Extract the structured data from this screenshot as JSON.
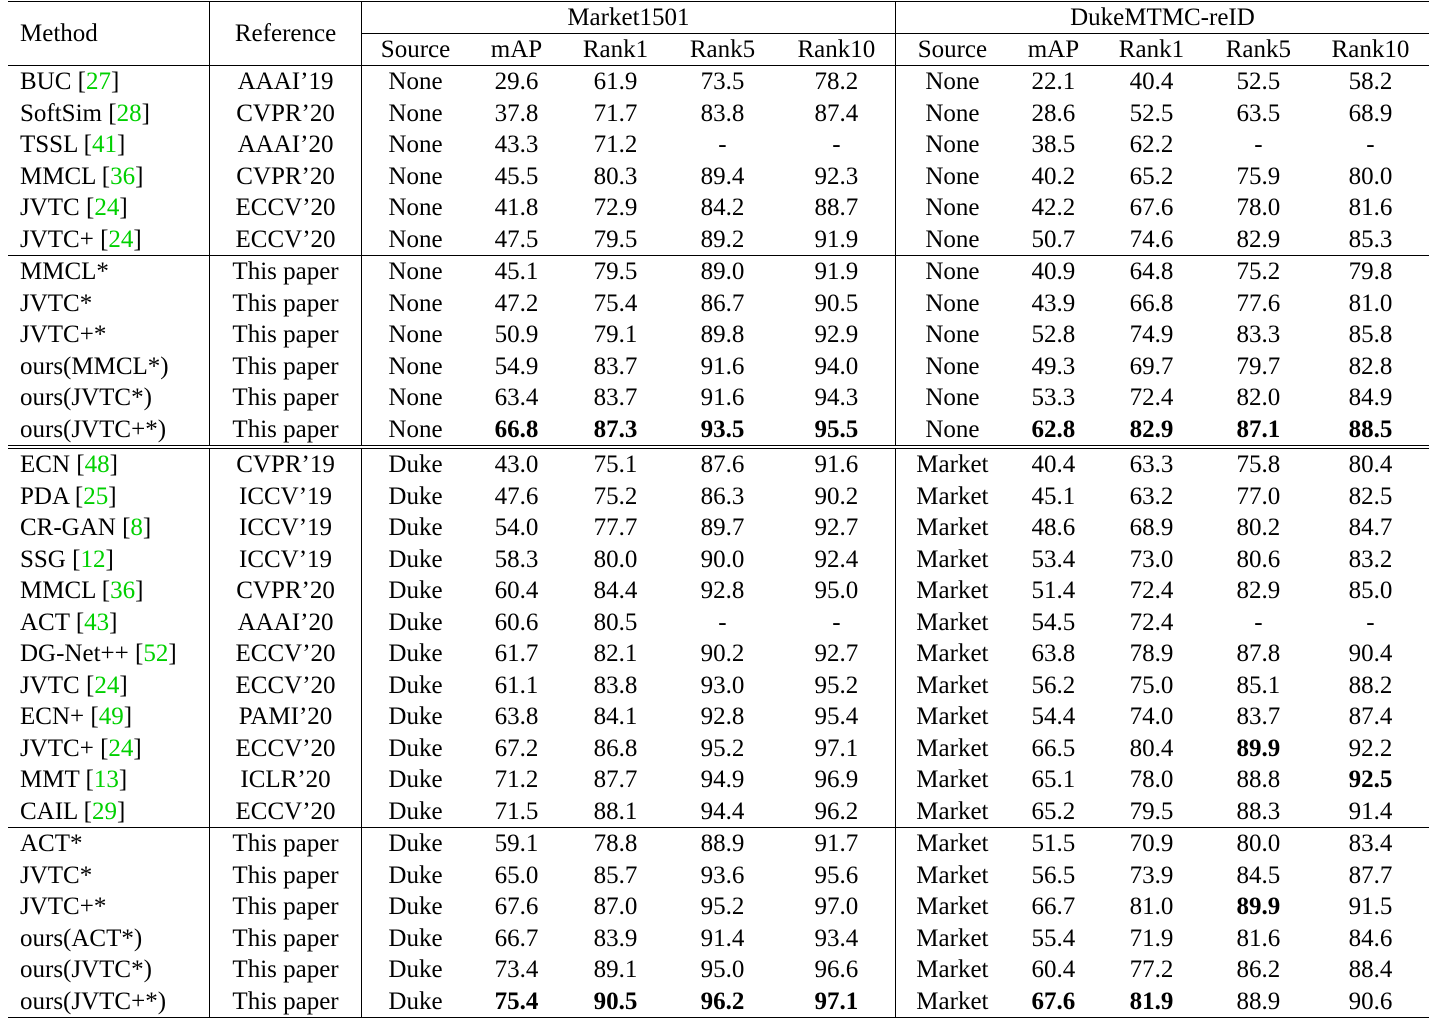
{
  "header": {
    "method": "Method",
    "reference": "Reference",
    "market": "Market1501",
    "duke": "DukeMTMC-reID",
    "cols": [
      "Source",
      "mAP",
      "Rank1",
      "Rank5",
      "Rank10",
      "Source",
      "mAP",
      "Rank1",
      "Rank5",
      "Rank10"
    ]
  },
  "colors": {
    "citation": "#00d000"
  },
  "groups": [
    {
      "rows": [
        {
          "m": "BUC",
          "c": "27",
          "r": "AAAI’19",
          "v": [
            "None",
            "29.6",
            "61.9",
            "73.5",
            "78.2",
            "None",
            "22.1",
            "40.4",
            "52.5",
            "58.2"
          ],
          "b": []
        },
        {
          "m": "SoftSim",
          "c": "28",
          "r": "CVPR’20",
          "v": [
            "None",
            "37.8",
            "71.7",
            "83.8",
            "87.4",
            "None",
            "28.6",
            "52.5",
            "63.5",
            "68.9"
          ],
          "b": []
        },
        {
          "m": "TSSL",
          "c": "41",
          "r": "AAAI’20",
          "v": [
            "None",
            "43.3",
            "71.2",
            "-",
            "-",
            "None",
            "38.5",
            "62.2",
            "-",
            "-"
          ],
          "b": []
        },
        {
          "m": "MMCL",
          "c": "36",
          "r": "CVPR’20",
          "v": [
            "None",
            "45.5",
            "80.3",
            "89.4",
            "92.3",
            "None",
            "40.2",
            "65.2",
            "75.9",
            "80.0"
          ],
          "b": []
        },
        {
          "m": "JVTC",
          "c": "24",
          "r": "ECCV’20",
          "v": [
            "None",
            "41.8",
            "72.9",
            "84.2",
            "88.7",
            "None",
            "42.2",
            "67.6",
            "78.0",
            "81.6"
          ],
          "b": []
        },
        {
          "m": "JVTC+",
          "c": "24",
          "r": "ECCV’20",
          "v": [
            "None",
            "47.5",
            "79.5",
            "89.2",
            "91.9",
            "None",
            "50.7",
            "74.6",
            "82.9",
            "85.3"
          ],
          "b": []
        }
      ]
    },
    {
      "rows": [
        {
          "m": "MMCL*",
          "r": "This paper",
          "v": [
            "None",
            "45.1",
            "79.5",
            "89.0",
            "91.9",
            "None",
            "40.9",
            "64.8",
            "75.2",
            "79.8"
          ],
          "b": []
        },
        {
          "m": "JVTC*",
          "r": "This paper",
          "v": [
            "None",
            "47.2",
            "75.4",
            "86.7",
            "90.5",
            "None",
            "43.9",
            "66.8",
            "77.6",
            "81.0"
          ],
          "b": []
        },
        {
          "m": "JVTC+*",
          "r": "This paper",
          "v": [
            "None",
            "50.9",
            "79.1",
            "89.8",
            "92.9",
            "None",
            "52.8",
            "74.9",
            "83.3",
            "85.8"
          ],
          "b": []
        },
        {
          "m": "ours(MMCL*)",
          "r": "This paper",
          "v": [
            "None",
            "54.9",
            "83.7",
            "91.6",
            "94.0",
            "None",
            "49.3",
            "69.7",
            "79.7",
            "82.8"
          ],
          "b": []
        },
        {
          "m": "ours(JVTC*)",
          "r": "This paper",
          "v": [
            "None",
            "63.4",
            "83.7",
            "91.6",
            "94.3",
            "None",
            "53.3",
            "72.4",
            "82.0",
            "84.9"
          ],
          "b": []
        },
        {
          "m": "ours(JVTC+*)",
          "r": "This paper",
          "v": [
            "None",
            "66.8",
            "87.3",
            "93.5",
            "95.5",
            "None",
            "62.8",
            "82.9",
            "87.1",
            "88.5"
          ],
          "b": [
            1,
            2,
            3,
            4,
            6,
            7,
            8,
            9
          ]
        }
      ]
    },
    {
      "double": true,
      "rows": [
        {
          "m": "ECN",
          "c": "48",
          "r": "CVPR’19",
          "v": [
            "Duke",
            "43.0",
            "75.1",
            "87.6",
            "91.6",
            "Market",
            "40.4",
            "63.3",
            "75.8",
            "80.4"
          ],
          "b": []
        },
        {
          "m": "PDA",
          "c": "25",
          "r": "ICCV’19",
          "v": [
            "Duke",
            "47.6",
            "75.2",
            "86.3",
            "90.2",
            "Market",
            "45.1",
            "63.2",
            "77.0",
            "82.5"
          ],
          "b": []
        },
        {
          "m": "CR-GAN",
          "c": "8",
          "r": "ICCV’19",
          "v": [
            "Duke",
            "54.0",
            "77.7",
            "89.7",
            "92.7",
            "Market",
            "48.6",
            "68.9",
            "80.2",
            "84.7"
          ],
          "b": []
        },
        {
          "m": "SSG",
          "c": "12",
          "r": "ICCV’19",
          "v": [
            "Duke",
            "58.3",
            "80.0",
            "90.0",
            "92.4",
            "Market",
            "53.4",
            "73.0",
            "80.6",
            "83.2"
          ],
          "b": []
        },
        {
          "m": "MMCL",
          "c": "36",
          "r": "CVPR’20",
          "v": [
            "Duke",
            "60.4",
            "84.4",
            "92.8",
            "95.0",
            "Market",
            "51.4",
            "72.4",
            "82.9",
            "85.0"
          ],
          "b": []
        },
        {
          "m": "ACT",
          "c": "43",
          "r": "AAAI’20",
          "v": [
            "Duke",
            "60.6",
            "80.5",
            "-",
            "-",
            "Market",
            "54.5",
            "72.4",
            "-",
            "-"
          ],
          "b": []
        },
        {
          "m": "DG-Net++",
          "c": "52",
          "r": "ECCV’20",
          "v": [
            "Duke",
            "61.7",
            "82.1",
            "90.2",
            "92.7",
            "Market",
            "63.8",
            "78.9",
            "87.8",
            "90.4"
          ],
          "b": []
        },
        {
          "m": "JVTC",
          "c": "24",
          "r": "ECCV’20",
          "v": [
            "Duke",
            "61.1",
            "83.8",
            "93.0",
            "95.2",
            "Market",
            "56.2",
            "75.0",
            "85.1",
            "88.2"
          ],
          "b": []
        },
        {
          "m": "ECN+",
          "c": "49",
          "r": "PAMI’20",
          "v": [
            "Duke",
            "63.8",
            "84.1",
            "92.8",
            "95.4",
            "Market",
            "54.4",
            "74.0",
            "83.7",
            "87.4"
          ],
          "b": []
        },
        {
          "m": "JVTC+",
          "c": "24",
          "r": "ECCV’20",
          "v": [
            "Duke",
            "67.2",
            "86.8",
            "95.2",
            "97.1",
            "Market",
            "66.5",
            "80.4",
            "89.9",
            "92.2"
          ],
          "b": [
            8
          ]
        },
        {
          "m": "MMT",
          "c": "13",
          "r": "ICLR’20",
          "v": [
            "Duke",
            "71.2",
            "87.7",
            "94.9",
            "96.9",
            "Market",
            "65.1",
            "78.0",
            "88.8",
            "92.5"
          ],
          "b": [
            9
          ]
        },
        {
          "m": "CAIL",
          "c": "29",
          "r": "ECCV’20",
          "v": [
            "Duke",
            "71.5",
            "88.1",
            "94.4",
            "96.2",
            "Market",
            "65.2",
            "79.5",
            "88.3",
            "91.4"
          ],
          "b": []
        }
      ]
    },
    {
      "rows": [
        {
          "m": "ACT*",
          "r": "This paper",
          "v": [
            "Duke",
            "59.1",
            "78.8",
            "88.9",
            "91.7",
            "Market",
            "51.5",
            "70.9",
            "80.0",
            "83.4"
          ],
          "b": []
        },
        {
          "m": "JVTC*",
          "r": "This paper",
          "v": [
            "Duke",
            "65.0",
            "85.7",
            "93.6",
            "95.6",
            "Market",
            "56.5",
            "73.9",
            "84.5",
            "87.7"
          ],
          "b": []
        },
        {
          "m": "JVTC+*",
          "r": "This paper",
          "v": [
            "Duke",
            "67.6",
            "87.0",
            "95.2",
            "97.0",
            "Market",
            "66.7",
            "81.0",
            "89.9",
            "91.5"
          ],
          "b": [
            8
          ]
        },
        {
          "m": "ours(ACT*)",
          "r": "This paper",
          "v": [
            "Duke",
            "66.7",
            "83.9",
            "91.4",
            "93.4",
            "Market",
            "55.4",
            "71.9",
            "81.6",
            "84.6"
          ],
          "b": []
        },
        {
          "m": "ours(JVTC*)",
          "r": "This paper",
          "v": [
            "Duke",
            "73.4",
            "89.1",
            "95.0",
            "96.6",
            "Market",
            "60.4",
            "77.2",
            "86.2",
            "88.4"
          ],
          "b": []
        },
        {
          "m": "ours(JVTC+*)",
          "r": "This paper",
          "v": [
            "Duke",
            "75.4",
            "90.5",
            "96.2",
            "97.1",
            "Market",
            "67.6",
            "81.9",
            "88.9",
            "90.6"
          ],
          "b": [
            1,
            2,
            3,
            4,
            6,
            7
          ]
        }
      ]
    }
  ]
}
